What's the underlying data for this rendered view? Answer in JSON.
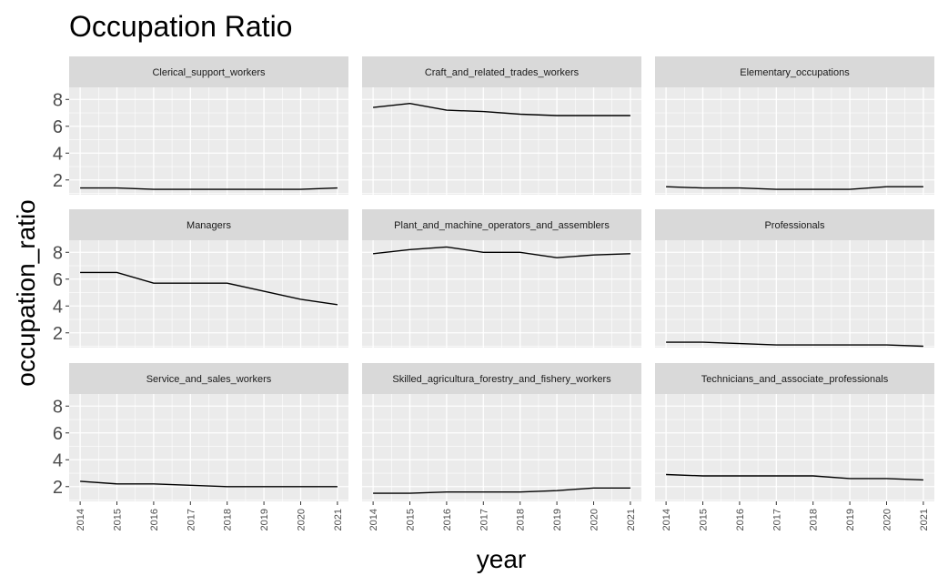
{
  "chart_data": {
    "type": "line",
    "title": "Occupation Ratio",
    "xlabel": "year",
    "ylabel": "occupation_ratio",
    "x": [
      2014,
      2015,
      2016,
      2017,
      2018,
      2019,
      2020,
      2021
    ],
    "xlim": [
      2013.7,
      2021.3
    ],
    "ylim": [
      0.9,
      8.9
    ],
    "yticks": [
      2,
      4,
      6,
      8
    ],
    "facet_layout": {
      "rows": 3,
      "cols": 3
    },
    "grid": true,
    "legend": "none",
    "colors": {
      "panel_bg": "#ebebeb",
      "strip_bg": "#d9d9d9",
      "grid": "#ffffff",
      "line": "#000000",
      "tick_text": "#4d4d4d"
    },
    "series": [
      {
        "name": "Clerical_support_workers",
        "values": [
          1.4,
          1.4,
          1.3,
          1.3,
          1.3,
          1.3,
          1.3,
          1.4
        ]
      },
      {
        "name": "Craft_and_related_trades_workers",
        "values": [
          7.4,
          7.7,
          7.2,
          7.1,
          6.9,
          6.8,
          6.8,
          6.8
        ]
      },
      {
        "name": "Elementary_occupations",
        "values": [
          1.5,
          1.4,
          1.4,
          1.3,
          1.3,
          1.3,
          1.5,
          1.5
        ]
      },
      {
        "name": "Managers",
        "values": [
          6.5,
          6.5,
          5.7,
          5.7,
          5.7,
          5.1,
          4.5,
          4.1
        ]
      },
      {
        "name": "Plant_and_machine_operators_and_assemblers",
        "values": [
          7.9,
          8.2,
          8.4,
          8.0,
          8.0,
          7.6,
          7.8,
          7.9
        ]
      },
      {
        "name": "Professionals",
        "values": [
          1.3,
          1.3,
          1.2,
          1.1,
          1.1,
          1.1,
          1.1,
          1.0
        ]
      },
      {
        "name": "Service_and_sales_workers",
        "values": [
          2.4,
          2.2,
          2.2,
          2.1,
          2.0,
          2.0,
          2.0,
          2.0
        ]
      },
      {
        "name": "Skilled_agricultura_forestry_and_fishery_workers",
        "values": [
          1.5,
          1.5,
          1.6,
          1.6,
          1.6,
          1.7,
          1.9,
          1.9
        ]
      },
      {
        "name": "Technicians_and_associate_professionals",
        "values": [
          2.9,
          2.8,
          2.8,
          2.8,
          2.8,
          2.6,
          2.6,
          2.5
        ]
      }
    ]
  }
}
